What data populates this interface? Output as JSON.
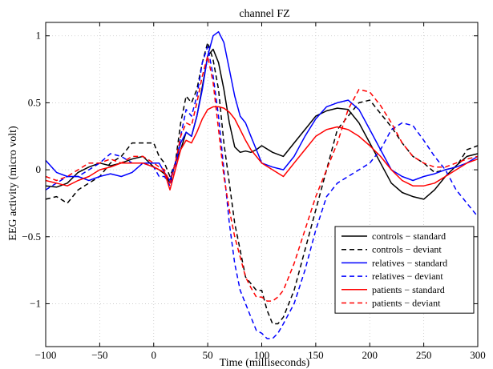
{
  "chart_data": {
    "type": "line",
    "title": "channel FZ",
    "xlabel": "Time (milliseconds)",
    "ylabel": "EEG activity (micro volt)",
    "xlim": [
      -100,
      300
    ],
    "ylim": [
      -1.32,
      1.1
    ],
    "xticks": [
      -100,
      -50,
      0,
      50,
      100,
      150,
      200,
      250,
      300
    ],
    "yticks": [
      -1,
      -0.5,
      0,
      0.5,
      1
    ],
    "grid": true,
    "legend_position": "bottom-right",
    "series": [
      {
        "name": "controls − standard",
        "color": "#000000",
        "dash": "solid",
        "x": [
          -100,
          -90,
          -80,
          -70,
          -60,
          -50,
          -40,
          -30,
          -20,
          -10,
          0,
          5,
          10,
          15,
          20,
          25,
          30,
          35,
          40,
          45,
          50,
          55,
          60,
          65,
          70,
          75,
          80,
          85,
          90,
          95,
          100,
          110,
          120,
          130,
          140,
          150,
          160,
          170,
          180,
          190,
          200,
          210,
          220,
          230,
          240,
          250,
          260,
          270,
          280,
          290,
          300
        ],
        "y": [
          -0.12,
          -0.13,
          -0.1,
          -0.02,
          0.02,
          0.05,
          0.03,
          0.05,
          0.08,
          0.1,
          0.02,
          0.0,
          -0.03,
          -0.1,
          0.05,
          0.15,
          0.28,
          0.25,
          0.4,
          0.62,
          0.85,
          0.9,
          0.8,
          0.6,
          0.35,
          0.17,
          0.13,
          0.14,
          0.13,
          0.15,
          0.18,
          0.13,
          0.1,
          0.2,
          0.3,
          0.4,
          0.44,
          0.46,
          0.45,
          0.35,
          0.2,
          0.05,
          -0.1,
          -0.17,
          -0.2,
          -0.22,
          -0.15,
          -0.05,
          0.03,
          0.1,
          0.12
        ]
      },
      {
        "name": "controls − deviant",
        "color": "#000000",
        "dash": "dashed",
        "x": [
          -100,
          -90,
          -80,
          -70,
          -60,
          -50,
          -40,
          -30,
          -20,
          -10,
          0,
          5,
          10,
          15,
          20,
          25,
          30,
          35,
          40,
          45,
          50,
          55,
          60,
          65,
          70,
          75,
          80,
          85,
          90,
          95,
          100,
          105,
          110,
          115,
          120,
          130,
          140,
          150,
          160,
          170,
          180,
          190,
          200,
          210,
          220,
          230,
          240,
          250,
          260,
          270,
          280,
          290,
          300
        ],
        "y": [
          -0.22,
          -0.2,
          -0.25,
          -0.15,
          -0.1,
          -0.05,
          0.05,
          0.1,
          0.2,
          0.2,
          0.2,
          0.1,
          0.05,
          -0.05,
          0.05,
          0.35,
          0.55,
          0.5,
          0.6,
          0.8,
          0.95,
          0.82,
          0.6,
          0.2,
          -0.1,
          -0.4,
          -0.6,
          -0.8,
          -0.85,
          -0.9,
          -0.9,
          -1.05,
          -1.15,
          -1.15,
          -1.1,
          -0.9,
          -0.6,
          -0.3,
          0.0,
          0.3,
          0.4,
          0.5,
          0.52,
          0.42,
          0.32,
          0.2,
          0.1,
          0.05,
          -0.02,
          0.0,
          0.02,
          0.15,
          0.18
        ]
      },
      {
        "name": "relatives − standard",
        "color": "#0000ff",
        "dash": "solid",
        "x": [
          -100,
          -90,
          -80,
          -70,
          -60,
          -50,
          -40,
          -30,
          -20,
          -10,
          0,
          5,
          10,
          15,
          20,
          25,
          30,
          35,
          40,
          45,
          50,
          55,
          60,
          65,
          70,
          75,
          80,
          85,
          90,
          95,
          100,
          110,
          120,
          130,
          140,
          150,
          160,
          170,
          180,
          190,
          200,
          210,
          220,
          230,
          240,
          250,
          260,
          270,
          280,
          290,
          300
        ],
        "y": [
          0.07,
          -0.02,
          -0.05,
          -0.05,
          -0.08,
          -0.05,
          -0.03,
          -0.05,
          -0.02,
          0.05,
          0.05,
          0.05,
          -0.02,
          -0.08,
          0.05,
          0.2,
          0.28,
          0.25,
          0.4,
          0.6,
          0.85,
          1.0,
          1.03,
          0.95,
          0.75,
          0.55,
          0.4,
          0.35,
          0.25,
          0.15,
          0.05,
          0.02,
          0.0,
          0.1,
          0.25,
          0.38,
          0.47,
          0.5,
          0.52,
          0.45,
          0.3,
          0.15,
          0.0,
          -0.05,
          -0.08,
          -0.05,
          -0.03,
          0.0,
          0.02,
          0.05,
          0.1
        ]
      },
      {
        "name": "relatives − deviant",
        "color": "#0000ff",
        "dash": "dashed",
        "x": [
          -100,
          -90,
          -80,
          -70,
          -60,
          -50,
          -40,
          -30,
          -20,
          -10,
          0,
          5,
          10,
          15,
          20,
          25,
          30,
          35,
          40,
          45,
          50,
          55,
          60,
          65,
          70,
          75,
          80,
          85,
          90,
          95,
          100,
          105,
          110,
          115,
          120,
          130,
          140,
          150,
          160,
          170,
          180,
          190,
          200,
          210,
          220,
          230,
          240,
          250,
          260,
          270,
          280,
          290,
          300
        ],
        "y": [
          -0.15,
          -0.1,
          -0.05,
          -0.05,
          0.0,
          0.05,
          0.12,
          0.1,
          0.05,
          0.05,
          0.02,
          -0.05,
          -0.05,
          -0.12,
          0.0,
          0.25,
          0.45,
          0.4,
          0.55,
          0.8,
          0.92,
          0.7,
          0.4,
          0.0,
          -0.4,
          -0.7,
          -0.9,
          -1.0,
          -1.1,
          -1.2,
          -1.22,
          -1.26,
          -1.26,
          -1.22,
          -1.15,
          -1.0,
          -0.75,
          -0.45,
          -0.2,
          -0.1,
          -0.05,
          0.0,
          0.05,
          0.15,
          0.3,
          0.35,
          0.33,
          0.22,
          0.1,
          0.0,
          -0.15,
          -0.25,
          -0.35
        ]
      },
      {
        "name": "patients − standard",
        "color": "#ff0000",
        "dash": "solid",
        "x": [
          -100,
          -90,
          -80,
          -70,
          -60,
          -50,
          -40,
          -30,
          -20,
          -10,
          0,
          5,
          10,
          15,
          20,
          25,
          30,
          35,
          40,
          45,
          50,
          55,
          60,
          65,
          70,
          75,
          80,
          85,
          90,
          95,
          100,
          110,
          120,
          130,
          140,
          150,
          160,
          170,
          180,
          190,
          200,
          210,
          220,
          230,
          240,
          250,
          260,
          270,
          280,
          290,
          300
        ],
        "y": [
          -0.08,
          -0.1,
          -0.12,
          -0.08,
          -0.05,
          0.0,
          0.02,
          0.05,
          0.05,
          0.05,
          0.02,
          0.0,
          -0.02,
          -0.15,
          0.0,
          0.15,
          0.22,
          0.2,
          0.28,
          0.38,
          0.45,
          0.47,
          0.47,
          0.46,
          0.43,
          0.38,
          0.3,
          0.22,
          0.15,
          0.1,
          0.05,
          0.0,
          -0.05,
          0.05,
          0.15,
          0.25,
          0.3,
          0.32,
          0.3,
          0.25,
          0.18,
          0.1,
          0.0,
          -0.08,
          -0.12,
          -0.12,
          -0.1,
          -0.05,
          0.0,
          0.05,
          0.08
        ]
      },
      {
        "name": "patients − deviant",
        "color": "#ff0000",
        "dash": "dashed",
        "x": [
          -100,
          -90,
          -80,
          -70,
          -60,
          -50,
          -40,
          -30,
          -20,
          -10,
          0,
          5,
          10,
          15,
          20,
          25,
          30,
          35,
          40,
          45,
          50,
          55,
          60,
          65,
          70,
          75,
          80,
          85,
          90,
          95,
          100,
          105,
          110,
          115,
          120,
          130,
          140,
          150,
          160,
          170,
          180,
          190,
          200,
          210,
          220,
          230,
          240,
          250,
          260,
          270,
          280,
          290,
          300
        ],
        "y": [
          -0.05,
          -0.08,
          -0.05,
          0.0,
          0.05,
          0.05,
          0.08,
          0.05,
          0.1,
          0.1,
          0.05,
          0.02,
          0.0,
          -0.1,
          0.05,
          0.25,
          0.35,
          0.33,
          0.5,
          0.7,
          0.85,
          0.65,
          0.3,
          -0.05,
          -0.3,
          -0.5,
          -0.65,
          -0.8,
          -0.88,
          -0.95,
          -0.95,
          -0.98,
          -0.98,
          -0.95,
          -0.9,
          -0.7,
          -0.45,
          -0.2,
          0.0,
          0.2,
          0.45,
          0.6,
          0.58,
          0.48,
          0.35,
          0.2,
          0.1,
          0.05,
          0.02,
          0.02,
          0.05,
          0.08,
          0.1
        ]
      }
    ]
  }
}
